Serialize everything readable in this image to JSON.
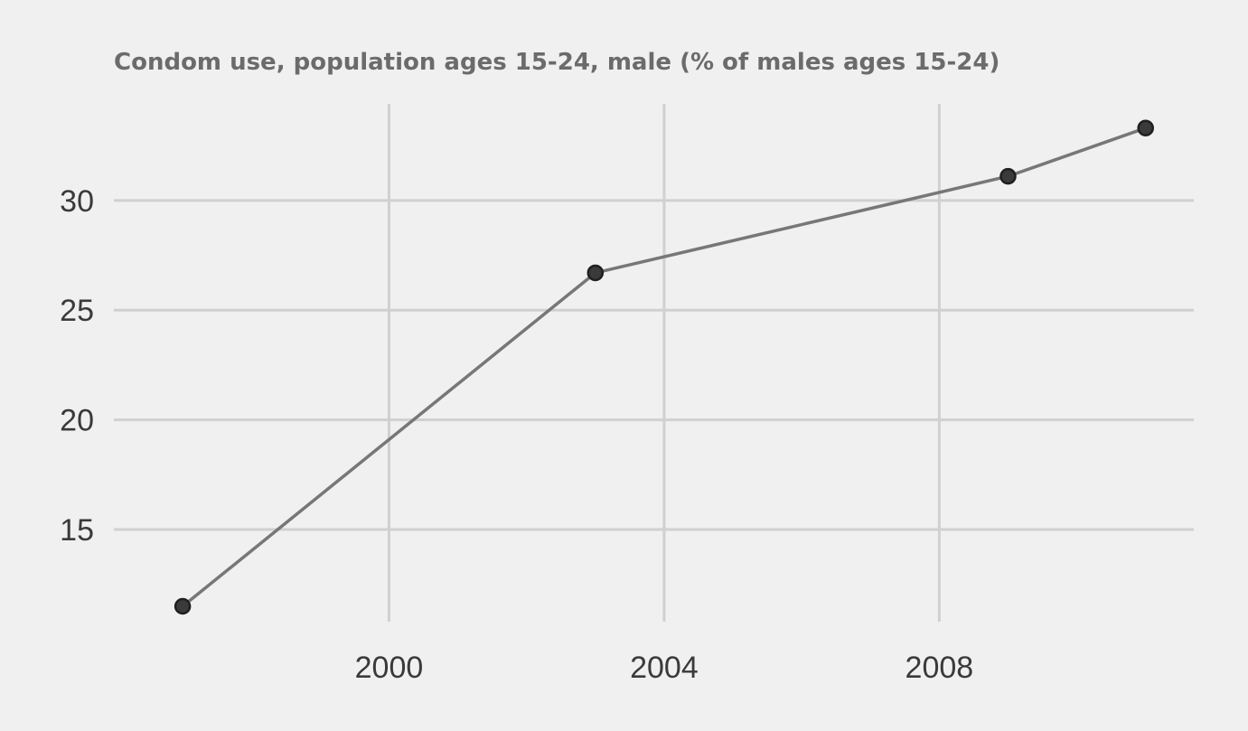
{
  "chart_data": {
    "type": "line",
    "title": "Condom use, population ages 15-24, male (% of males ages 15-24)",
    "xlabel": "",
    "ylabel": "",
    "x": [
      1997,
      2003,
      2009,
      2011
    ],
    "series": [
      {
        "values": [
          11.5,
          26.7,
          31.1,
          33.3
        ]
      }
    ],
    "xticks": [
      2000,
      2004,
      2008
    ],
    "yticks": [
      15,
      20,
      25,
      30
    ],
    "xlim": [
      1996,
      2011.7
    ],
    "ylim": [
      10.8,
      34.4
    ],
    "grid": true,
    "colors": {
      "line": "#777777",
      "point": "#3a3a3a",
      "grid": "#d0d0d0",
      "background": "#f0f0f0"
    }
  }
}
